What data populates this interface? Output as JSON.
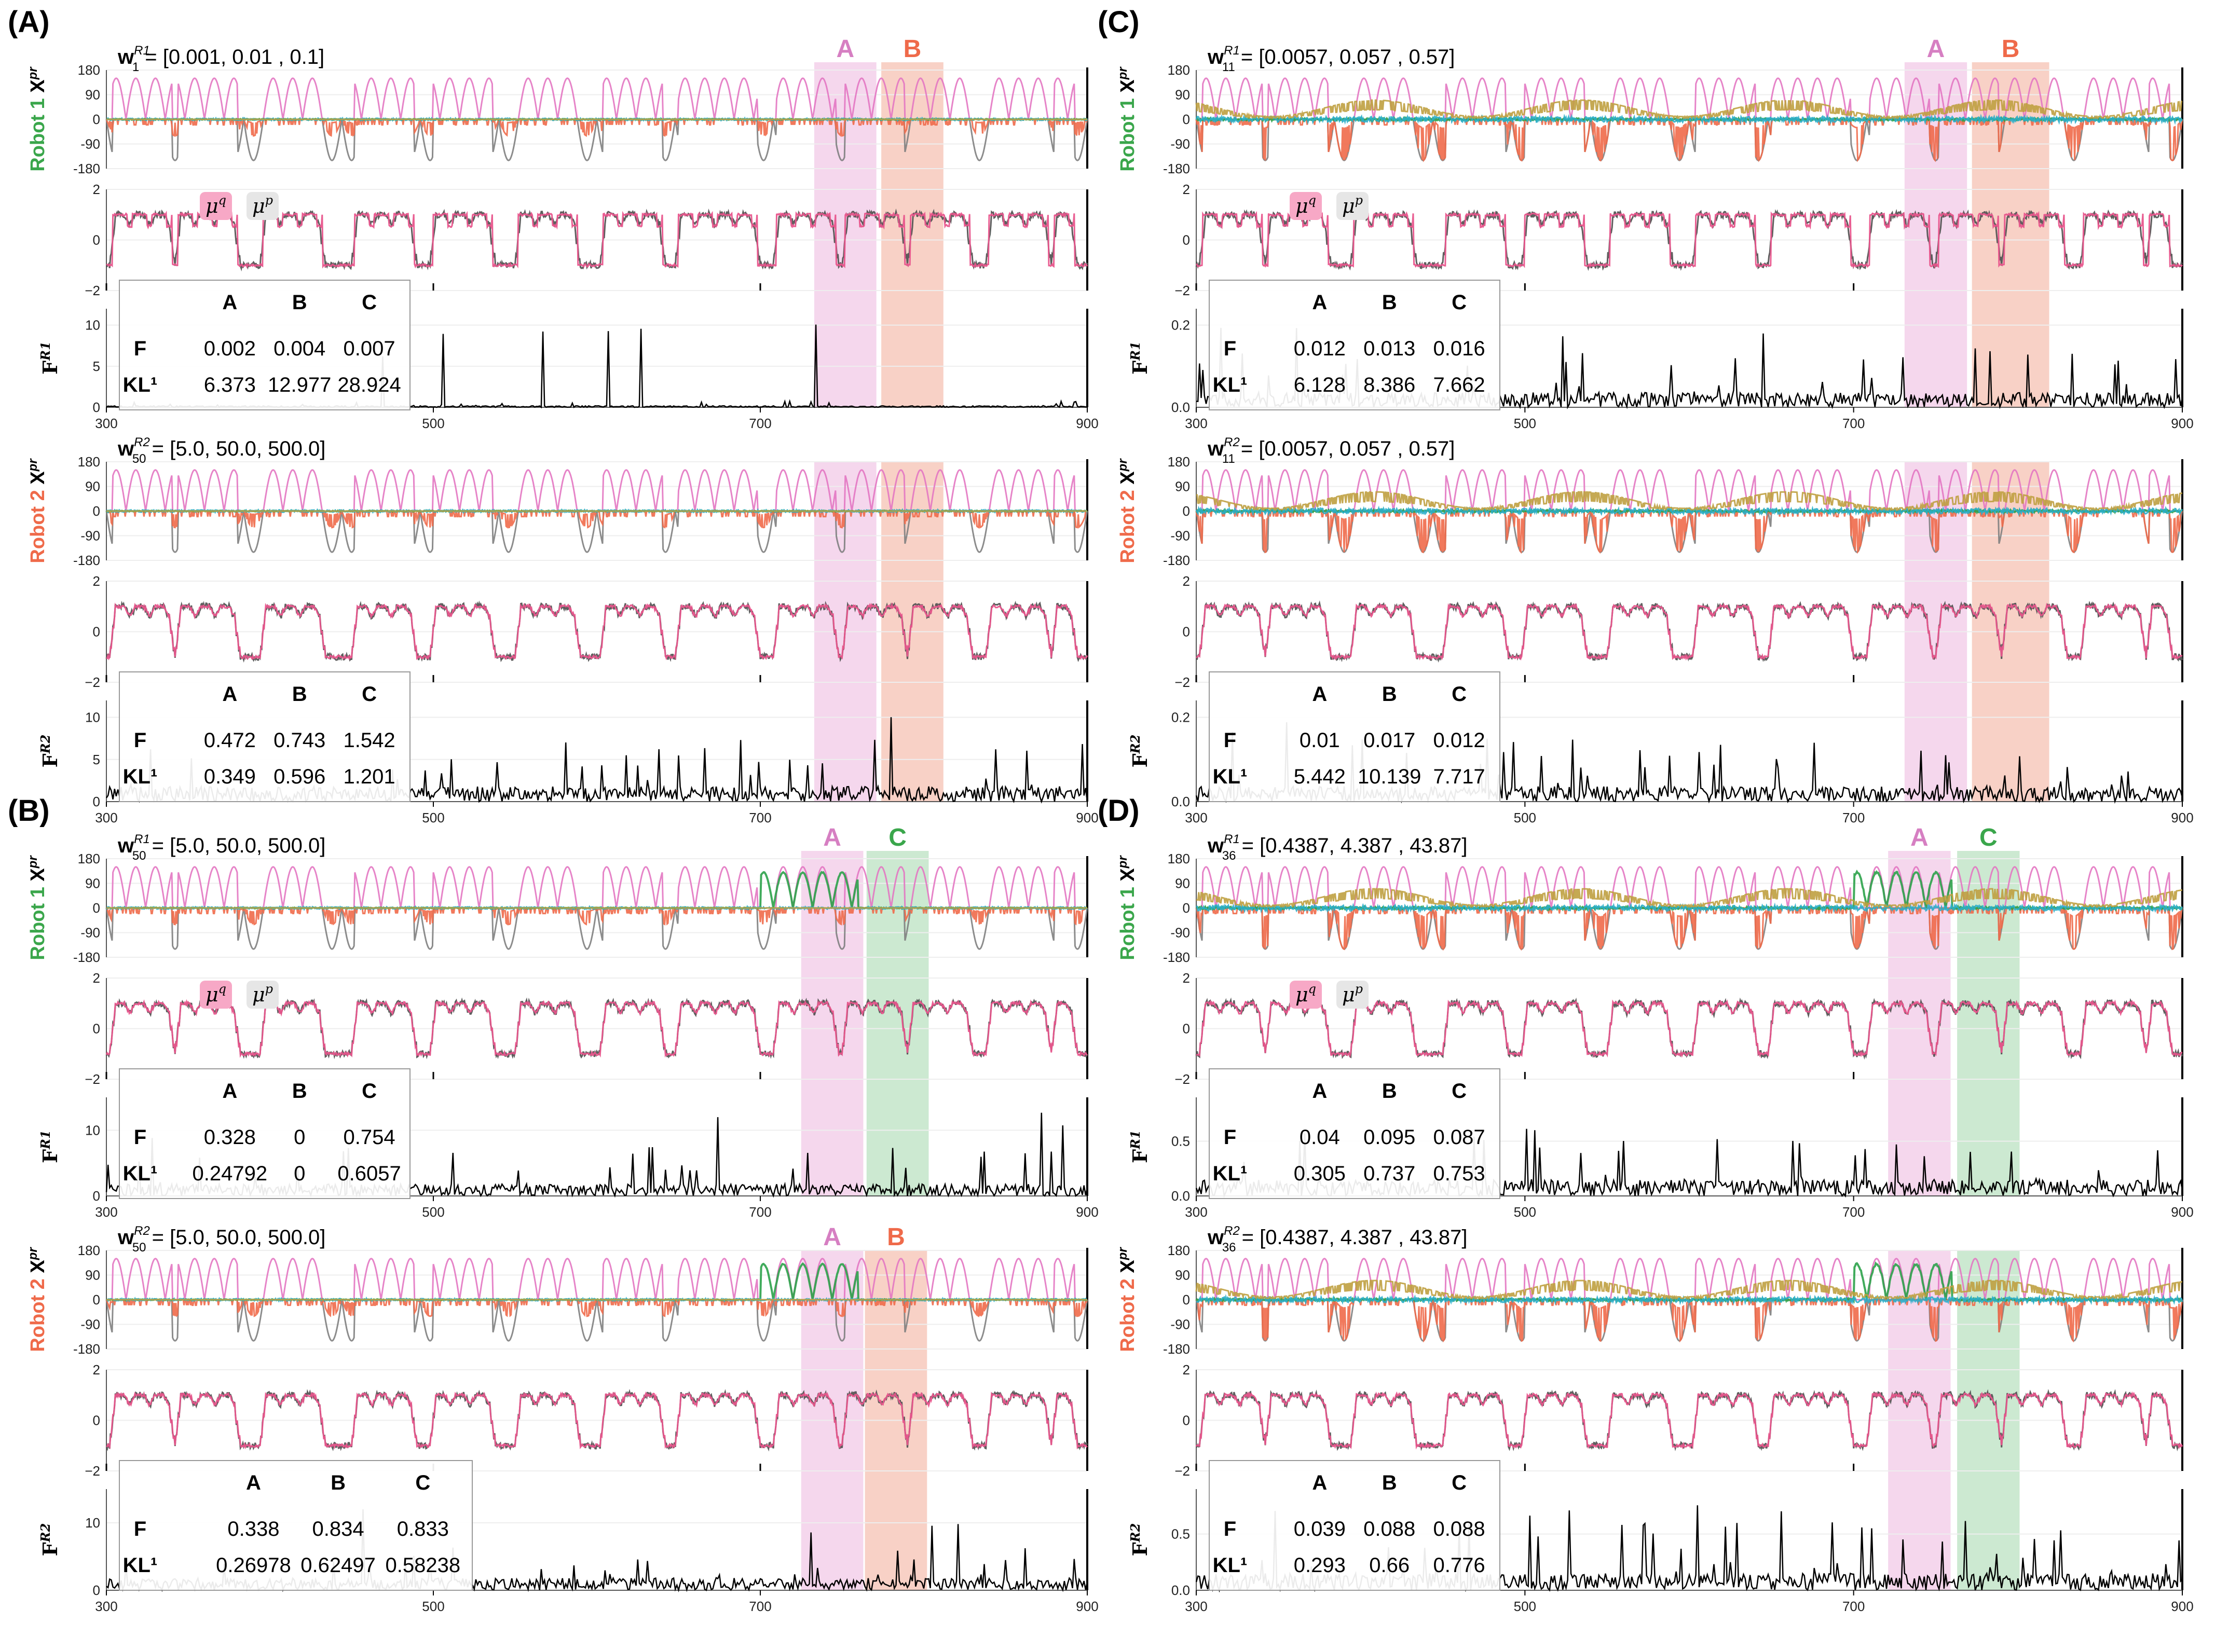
{
  "chart_data": {
    "type": "line",
    "x_range": [
      300,
      900
    ],
    "x_ticks": [
      "300",
      "500",
      "700",
      "900"
    ],
    "y_ticks_xpr": [
      "180",
      "90",
      "0",
      "-90",
      "-180"
    ],
    "y_ticks_mid": [
      "2",
      "0",
      "−2"
    ],
    "series_legend": [
      {
        "name": "μq",
        "label": "μ",
        "sup": "q",
        "color": "#e8558c"
      },
      {
        "name": "μp",
        "label": "μ",
        "sup": "p",
        "color": "#555555"
      }
    ],
    "joint_colors": [
      "#e377c2",
      "#7f7f7f",
      "#ef6a4a",
      "#2ca24a",
      "#2aaec9",
      "#bfa040"
    ],
    "table_columns": [
      "A",
      "B",
      "C"
    ],
    "row_labels": {
      "f": "F",
      "kl": "KL¹"
    },
    "panels": [
      {
        "label": "(A)",
        "highlights": [
          {
            "name": "A",
            "from": 733,
            "to": 771,
            "color": "#e8a6d6"
          },
          {
            "name": "B",
            "from": 774,
            "to": 812,
            "color": "#ef9a80"
          }
        ],
        "robots": [
          {
            "robot_label": "Robot 1",
            "robot_color": "#3aa64b",
            "w_text": "= [0.001, 0.01 , 0.1]",
            "w_sub": "1",
            "w_sup": "R1",
            "f_sub": "R1",
            "f_ticks": [
              "10",
              "5",
              "0"
            ],
            "f_max": 12,
            "f_scale": 0.3,
            "table": {
              "F": [
                "0.002",
                "0.004",
                "0.007"
              ],
              "KL": [
                "6.373",
                "12.977",
                "28.924"
              ]
            }
          },
          {
            "robot_label": "Robot 2",
            "robot_color": "#ef6a4a",
            "w_text": "= [5.0, 50.0, 500.0]",
            "w_sub": "50",
            "w_sup": "R2",
            "f_sub": "R2",
            "f_ticks": [
              "10",
              "5",
              "0"
            ],
            "f_max": 12,
            "f_scale": 3,
            "table": {
              "F": [
                "0.472",
                "0.743",
                "1.542"
              ],
              "KL": [
                "0.349",
                "0.596",
                "1.201"
              ]
            }
          }
        ]
      },
      {
        "label": "(B)",
        "highlights": [
          {
            "name": "A",
            "from": 725,
            "to": 763,
            "color": "#e8a6d6"
          },
          {
            "name": "C",
            "from": 765,
            "to": 803,
            "color": "#8fcf9a"
          }
        ],
        "robots": [
          {
            "robot_label": "Robot 1",
            "robot_color": "#3aa64b",
            "w_text": "= [5.0, 50.0, 500.0]",
            "w_sub": "50",
            "w_sup": "R1",
            "f_sub": "R1",
            "f_ticks": [
              "10",
              "0"
            ],
            "f_max": 15,
            "f_scale": 3,
            "table": {
              "F": [
                "0.328",
                "0",
                "0.754"
              ],
              "KL": [
                "0.24792",
                "0",
                "0.6057"
              ]
            }
          },
          {
            "robot_label": "Robot 2",
            "robot_color": "#ef6a4a",
            "w_text": "= [5.0, 50.0, 500.0]",
            "w_sub": "50",
            "w_sup": "R2",
            "f_sub": "R2",
            "f_ticks": [
              "10",
              "0"
            ],
            "f_max": 15,
            "f_scale": 3,
            "highlights_override": [
              {
                "name": "A",
                "from": 725,
                "to": 763,
                "color": "#e8a6d6"
              },
              {
                "name": "B",
                "from": 764,
                "to": 802,
                "color": "#ef9a80"
              }
            ],
            "table": {
              "F": [
                "0.338",
                "0.834",
                "0.833"
              ],
              "KL": [
                "0.26978",
                "0.62497",
                "0.58238"
              ]
            }
          }
        ]
      },
      {
        "label": "(C)",
        "highlights": [
          {
            "name": "A",
            "from": 731,
            "to": 769,
            "color": "#e8a6d6"
          },
          {
            "name": "B",
            "from": 772,
            "to": 819,
            "color": "#ef9a80"
          }
        ],
        "robots": [
          {
            "robot_label": "Robot 1",
            "robot_color": "#3aa64b",
            "w_text": "= [0.0057, 0.057 , 0.57]",
            "w_sub": "11",
            "w_sup": "R1",
            "f_sub": "R1",
            "f_ticks": [
              "0.2",
              "0.0"
            ],
            "f_max": 0.24,
            "f_scale": 0.06,
            "table": {
              "F": [
                "0.012",
                "0.013",
                "0.016"
              ],
              "KL": [
                "6.128",
                "8.386",
                "7.662"
              ]
            }
          },
          {
            "robot_label": "Robot 2",
            "robot_color": "#ef6a4a",
            "w_text": "= [0.0057, 0.057 , 0.57]",
            "w_sub": "11",
            "w_sup": "R2",
            "f_sub": "R2",
            "f_ticks": [
              "0.2",
              "0.0"
            ],
            "f_max": 0.24,
            "f_scale": 0.06,
            "table": {
              "F": [
                "0.01",
                "0.017",
                "0.012"
              ],
              "KL": [
                "5.442",
                "10.139",
                "7.717"
              ]
            }
          }
        ]
      },
      {
        "label": "(D)",
        "highlights": [
          {
            "name": "A",
            "from": 721,
            "to": 759,
            "color": "#e8a6d6"
          },
          {
            "name": "C",
            "from": 763,
            "to": 801,
            "color": "#8fcf9a"
          }
        ],
        "robots": [
          {
            "robot_label": "Robot 1",
            "robot_color": "#3aa64b",
            "w_text": "= [0.4387, 4.387 , 43.87]",
            "w_sub": "36",
            "w_sup": "R1",
            "f_sub": "R1",
            "f_ticks": [
              "0.5",
              "0.0"
            ],
            "f_max": 0.9,
            "f_scale": 0.25,
            "table": {
              "F": [
                "0.04",
                "0.095",
                "0.087"
              ],
              "KL": [
                "0.305",
                "0.737",
                "0.753"
              ]
            }
          },
          {
            "robot_label": "Robot 2",
            "robot_color": "#ef6a4a",
            "w_text": "= [0.4387, 4.387 , 43.87]",
            "w_sub": "36",
            "w_sup": "R2",
            "f_sub": "R2",
            "f_ticks": [
              "0.5",
              "0.0"
            ],
            "f_max": 0.9,
            "f_scale": 0.25,
            "table": {
              "F": [
                "0.039",
                "0.088",
                "0.088"
              ],
              "KL": [
                "0.293",
                "0.66",
                "0.776"
              ]
            }
          }
        ]
      }
    ]
  }
}
